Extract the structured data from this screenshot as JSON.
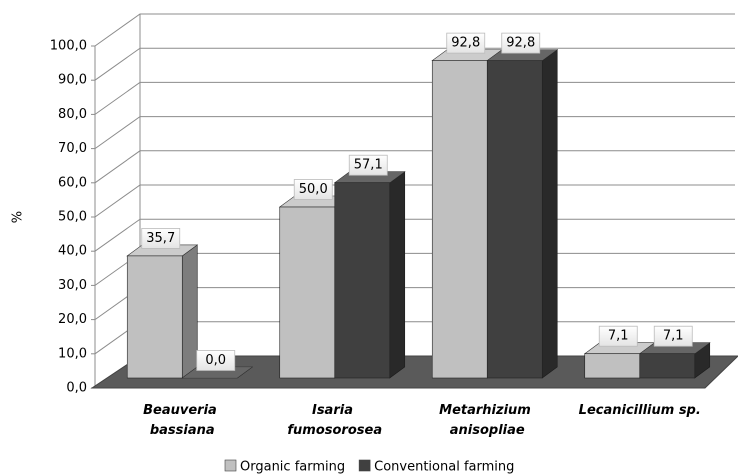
{
  "chart_data": {
    "type": "bar3d",
    "y_label": "%",
    "categories": [
      "Beauveria\nbassiana",
      "Isaria\nfumosorosea",
      "Metarhizium\nanisopliae",
      "Lecanicillium sp."
    ],
    "series": [
      {
        "name": "Organic farming",
        "color": "#c0c0c0",
        "values": [
          35.7,
          50.0,
          92.8,
          7.1
        ],
        "value_labels": [
          "35,7",
          "50,0",
          "92,8",
          "7,1"
        ]
      },
      {
        "name": "Conventional farming",
        "color": "#404040",
        "values": [
          0.0,
          57.1,
          92.8,
          7.1
        ],
        "value_labels": [
          "0,0",
          "57,1",
          "92,8",
          "7,1"
        ]
      }
    ],
    "ylim": [
      0,
      100
    ],
    "yticks": [
      {
        "value": 0,
        "label": "0,0"
      },
      {
        "value": 10,
        "label": "10,0"
      },
      {
        "value": 20,
        "label": "20,0"
      },
      {
        "value": 30,
        "label": "30,0"
      },
      {
        "value": 40,
        "label": "40,0"
      },
      {
        "value": 50,
        "label": "50,0"
      },
      {
        "value": 60,
        "label": "60,0"
      },
      {
        "value": 70,
        "label": "70,0"
      },
      {
        "value": 80,
        "label": "80,0"
      },
      {
        "value": 90,
        "label": "90,0"
      },
      {
        "value": 100,
        "label": "100,0"
      }
    ],
    "grid": true
  }
}
